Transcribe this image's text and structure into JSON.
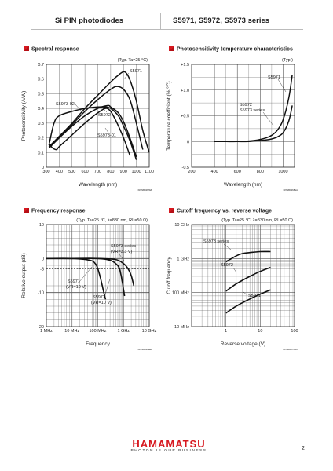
{
  "header": {
    "title": "Si PIN photodiodes",
    "series": "S5971, S5972, S5973 series"
  },
  "sections": {
    "spectral": "Spectral response",
    "temp": "Photosensitivity temperature characteristics",
    "freq": "Frequency response",
    "cutoff": "Cutoff frequency vs. reverse voltage"
  },
  "charts": [
    {
      "id": "spectral",
      "type": "line",
      "condition": "(Typ. Ta=25 °C)",
      "xlabel": "Wavelength (nm)",
      "ylabel": "Photosensitivity (A/W)",
      "code": "KPINB0267EB",
      "xlim": [
        300,
        1100
      ],
      "ylim": [
        0,
        0.7
      ],
      "xticks": [
        "300",
        "400",
        "500",
        "600",
        "700",
        "800",
        "900",
        "1000",
        "1100"
      ],
      "yticks": [
        "0",
        "0.1",
        "0.2",
        "0.3",
        "0.4",
        "0.5",
        "0.6",
        "0.7"
      ],
      "labels": [
        "S5971",
        "S5973-02",
        "S5972",
        "S5973-01"
      ],
      "series": [
        {
          "name": "S5971",
          "x": [
            320,
            400,
            500,
            600,
            700,
            800,
            850,
            900,
            930,
            960,
            1000,
            1050,
            1100
          ],
          "y": [
            0.14,
            0.21,
            0.3,
            0.4,
            0.49,
            0.58,
            0.62,
            0.65,
            0.63,
            0.57,
            0.45,
            0.25,
            0.1
          ]
        },
        {
          "name": "",
          "x": [
            320,
            400,
            500,
            600,
            700,
            800,
            850,
            900,
            950,
            1000,
            1050
          ],
          "y": [
            0.13,
            0.2,
            0.29,
            0.38,
            0.46,
            0.53,
            0.55,
            0.53,
            0.46,
            0.3,
            0.12
          ]
        },
        {
          "name": "S5973-02",
          "x": [
            320,
            360,
            400,
            500,
            600,
            700,
            760,
            800,
            860,
            900,
            950,
            1000
          ],
          "y": [
            0.15,
            0.3,
            0.35,
            0.38,
            0.4,
            0.41,
            0.41,
            0.4,
            0.35,
            0.28,
            0.18,
            0.05
          ]
        },
        {
          "name": "S5972",
          "x": [
            320,
            400,
            500,
            600,
            700,
            780,
            800,
            860,
            900,
            950,
            1000
          ],
          "y": [
            0.14,
            0.2,
            0.28,
            0.35,
            0.4,
            0.42,
            0.41,
            0.37,
            0.31,
            0.2,
            0.07
          ]
        },
        {
          "name": "S5973-01",
          "x": [
            320,
            350,
            380,
            400,
            500,
            600,
            700,
            760,
            800,
            850,
            900,
            950
          ],
          "y": [
            0.16,
            0.13,
            0.12,
            0.14,
            0.22,
            0.3,
            0.37,
            0.4,
            0.38,
            0.3,
            0.2,
            0.08
          ]
        }
      ]
    },
    {
      "id": "temp",
      "type": "line",
      "condition": "(Typ.)",
      "xlabel": "Wavelength (nm)",
      "ylabel": "Temperature coefficient (%/°C)",
      "code": "KPINB0268EA",
      "xlim": [
        200,
        1100
      ],
      "ylim": [
        -0.5,
        1.5
      ],
      "xticks": [
        "200",
        "400",
        "600",
        "800",
        "1000"
      ],
      "yticks": [
        "-0.5",
        "0",
        "+0.5",
        "+1.0",
        "+1.5"
      ],
      "labels": [
        "S5971",
        "S5972",
        "S5973 series"
      ],
      "series": [
        {
          "name": "S5971",
          "x": [
            400,
            500,
            600,
            700,
            750,
            800,
            850,
            900,
            950,
            1000,
            1050,
            1080
          ],
          "y": [
            0,
            0,
            0,
            0.01,
            0.02,
            0.04,
            0.07,
            0.12,
            0.22,
            0.42,
            0.85,
            1.3
          ]
        },
        {
          "name": "S5972, S5973 series",
          "x": [
            400,
            500,
            600,
            700,
            750,
            800,
            850,
            900,
            950,
            1000,
            1050,
            1080
          ],
          "y": [
            0,
            0,
            0,
            0,
            0.01,
            0.02,
            0.03,
            0.05,
            0.09,
            0.17,
            0.4,
            0.7
          ]
        }
      ]
    },
    {
      "id": "freq",
      "type": "line",
      "condition": "(Typ. Ta=25 °C, λ=830 nm, RL=50 Ω)",
      "xlabel": "Frequency",
      "ylabel": "Relative output (dB)",
      "code": "KPINB0269EB",
      "xlim": [
        1,
        10000
      ],
      "xscale": "log",
      "ylim": [
        -20,
        10
      ],
      "xticks": [
        "1 MHz",
        "10 MHz",
        "100 MHz",
        "1 GHz",
        "10 GHz"
      ],
      "yticks": [
        "-20",
        "-10",
        "-3",
        "0",
        "+10"
      ],
      "labels": [
        "S5973 series",
        "(VR=3.3 V)",
        "S5971",
        "(VR=10 V)",
        "S5972",
        "(VR=10 V)"
      ],
      "series": [
        {
          "name": "S5971",
          "x": [
            1,
            10,
            50,
            80,
            100,
            130,
            160,
            200
          ],
          "y": [
            0,
            0,
            -0.5,
            -1.5,
            -3,
            -6,
            -9,
            -12
          ]
        },
        {
          "name": "S5972",
          "x": [
            1,
            10,
            100,
            300,
            500,
            700,
            900,
            1100
          ],
          "y": [
            0,
            0,
            0,
            -0.5,
            -1.5,
            -3,
            -7,
            -11
          ]
        },
        {
          "name": "S5973 series",
          "x": [
            1,
            10,
            100,
            500,
            1000,
            1500,
            2000,
            2500
          ],
          "y": [
            0,
            0,
            0,
            -0.3,
            -1.5,
            -3,
            -5,
            -8
          ]
        }
      ]
    },
    {
      "id": "cutoff",
      "type": "line",
      "condition": "(Typ. Ta=25 °C, λ=830 nm, RL=50 Ω)",
      "xlabel": "Reverse voltage (V)",
      "ylabel": "Cutoff frequency",
      "code": "KPINB0270EC",
      "xlim": [
        0.1,
        100
      ],
      "xscale": "log",
      "ylim": [
        10,
        10000
      ],
      "yscale": "log",
      "xticks": [
        "1",
        "10",
        "100"
      ],
      "yticks": [
        "10 MHz",
        "100 MHz",
        "1 GHz",
        "10 GHz"
      ],
      "labels": [
        "S5973 series",
        "S5972",
        "S5971"
      ],
      "series": [
        {
          "name": "S5973 series",
          "x": [
            1,
            2,
            3,
            5,
            10,
            20
          ],
          "y": [
            800,
            1200,
            1400,
            1500,
            1600,
            1600
          ]
        },
        {
          "name": "S5972",
          "x": [
            1,
            2,
            5,
            10,
            20
          ],
          "y": [
            110,
            180,
            300,
            420,
            550
          ]
        },
        {
          "name": "S5971",
          "x": [
            1,
            2,
            5,
            10,
            20
          ],
          "y": [
            25,
            40,
            65,
            90,
            120
          ]
        }
      ]
    }
  ],
  "footer": {
    "brand": "HAMAMATSU",
    "tagline": "PHOTON IS OUR BUSINESS",
    "page": "2"
  }
}
